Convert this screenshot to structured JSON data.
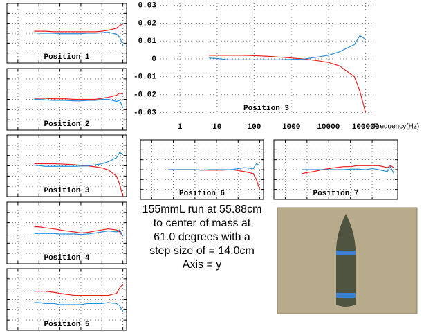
{
  "chart_data": [
    {
      "type": "line",
      "title": "Position 1",
      "xlog": true,
      "grid": true,
      "tick_labels": false,
      "x": [
        6,
        10,
        20,
        50,
        100,
        200,
        500,
        1000,
        2000,
        5000,
        10000,
        20000,
        50000,
        70000,
        100000
      ],
      "xlim": [
        0.3,
        150000
      ],
      "ylim": [
        -0.03,
        0.03
      ],
      "xticks": [
        1,
        10,
        100,
        1000,
        10000,
        100000
      ],
      "yticks": [
        -0.02,
        -0.01,
        0,
        0.01,
        0.02
      ],
      "series": [
        {
          "color": "#e8201e",
          "values": [
            0.002,
            0.002,
            0.002,
            0.0015,
            0.0015,
            0.0015,
            0.0015,
            0.0015,
            0.0015,
            0.0015,
            0.002,
            0.003,
            0.005,
            0.008,
            0.009
          ]
        },
        {
          "color": "#2a8fd8",
          "values": [
            0.0005,
            0,
            0,
            0,
            -0.0005,
            -0.0005,
            -0.0005,
            -0.0005,
            0,
            0,
            0.0005,
            0.001,
            -0.001,
            -0.004,
            -0.012
          ]
        }
      ]
    },
    {
      "type": "line",
      "title": "Position 2",
      "xlog": true,
      "grid": true,
      "tick_labels": false,
      "x": [
        6,
        10,
        20,
        50,
        100,
        200,
        500,
        1000,
        2000,
        5000,
        10000,
        20000,
        50000,
        70000,
        100000
      ],
      "xlim": [
        0.3,
        150000
      ],
      "ylim": [
        -0.03,
        0.03
      ],
      "xticks": [
        1,
        10,
        100,
        1000,
        10000,
        100000
      ],
      "yticks": [
        -0.02,
        -0.01,
        0,
        0.01,
        0.02
      ],
      "series": [
        {
          "color": "#e8201e",
          "values": [
            0.001,
            0.001,
            0.001,
            0.0005,
            0.0005,
            0.0005,
            0,
            0,
            0,
            0,
            0.001,
            0.002,
            0.004,
            0.006,
            0.005
          ]
        },
        {
          "color": "#2a8fd8",
          "values": [
            0,
            0,
            -0.0005,
            -0.001,
            -0.001,
            -0.001,
            -0.0015,
            -0.0015,
            -0.001,
            -0.001,
            0,
            0,
            -0.002,
            -0.001,
            -0.008
          ]
        }
      ]
    },
    {
      "type": "line",
      "title": "Position 3",
      "xlog": true,
      "grid": true,
      "tick_labels": false,
      "x": [
        6,
        10,
        20,
        50,
        100,
        200,
        500,
        1000,
        2000,
        5000,
        10000,
        20000,
        50000,
        70000,
        100000
      ],
      "xlim": [
        0.3,
        150000
      ],
      "ylim": [
        -0.03,
        0.03
      ],
      "xticks": [
        1,
        10,
        100,
        1000,
        10000,
        100000
      ],
      "yticks": [
        -0.02,
        -0.01,
        0,
        0.01,
        0.02
      ],
      "series": [
        {
          "color": "#e8201e",
          "values": [
            0.002,
            0.002,
            0.002,
            0.002,
            0.0018,
            0.0015,
            0.001,
            0.0005,
            0,
            -0.001,
            -0.002,
            -0.004,
            -0.01,
            -0.018,
            -0.03
          ]
        },
        {
          "color": "#2a8fd8",
          "values": [
            0.0005,
            0.0002,
            -0.0005,
            -0.0005,
            -0.0005,
            -0.0005,
            -0.0005,
            -0.0003,
            -0.0002,
            0.001,
            0.002,
            0.004,
            0.008,
            0.013,
            0.011
          ]
        }
      ]
    },
    {
      "type": "line",
      "title": "Position 4",
      "xlog": true,
      "grid": true,
      "tick_labels": false,
      "x": [
        6,
        10,
        20,
        50,
        100,
        200,
        500,
        1000,
        2000,
        5000,
        10000,
        20000,
        50000,
        70000,
        100000
      ],
      "xlim": [
        0.3,
        150000
      ],
      "ylim": [
        -0.03,
        0.03
      ],
      "xticks": [
        1,
        10,
        100,
        1000,
        10000,
        100000
      ],
      "yticks": [
        -0.02,
        -0.01,
        0,
        0.01,
        0.02
      ],
      "series": [
        {
          "color": "#e8201e",
          "values": [
            0.006,
            0.006,
            0.005,
            0.004,
            0.003,
            0.002,
            0.001,
            0,
            0.0005,
            0.002,
            0.003,
            0.004,
            0.003,
            0.001,
            -0.003
          ]
        },
        {
          "color": "#2a8fd8",
          "values": [
            -0.0005,
            -0.0005,
            -0.0005,
            -0.0005,
            -0.001,
            -0.001,
            -0.001,
            -0.0015,
            -0.001,
            0,
            0.001,
            0.002,
            0.001,
            0.003,
            -0.003
          ]
        }
      ]
    },
    {
      "type": "line",
      "title": "Position 5",
      "xlog": true,
      "grid": true,
      "tick_labels": false,
      "x": [
        6,
        10,
        20,
        50,
        100,
        200,
        500,
        1000,
        2000,
        5000,
        10000,
        20000,
        50000,
        70000,
        100000
      ],
      "xlim": [
        0.3,
        150000
      ],
      "ylim": [
        -0.03,
        0.03
      ],
      "xticks": [
        1,
        10,
        100,
        1000,
        10000,
        100000
      ],
      "yticks": [
        -0.02,
        -0.01,
        0,
        0.01,
        0.02
      ],
      "series": [
        {
          "color": "#e8201e",
          "values": [
            0.008,
            0.008,
            0.008,
            0.007,
            0.006,
            0.005,
            0.004,
            0.004,
            0.004,
            0.004,
            0.004,
            0.004,
            0.006,
            0.011,
            0.015
          ]
        },
        {
          "color": "#2a8fd8",
          "values": [
            -0.003,
            -0.003,
            -0.004,
            -0.004,
            -0.005,
            -0.005,
            -0.005,
            -0.005,
            -0.004,
            -0.004,
            -0.004,
            -0.003,
            -0.004,
            -0.006,
            -0.012
          ]
        }
      ]
    },
    {
      "type": "line",
      "title": "Position 3",
      "xlabel": "Frequency(Hz)",
      "xlog": true,
      "grid": true,
      "tick_labels": true,
      "x": [
        6,
        10,
        20,
        50,
        100,
        200,
        500,
        1000,
        2000,
        5000,
        10000,
        20000,
        50000,
        70000,
        100000
      ],
      "xlim": [
        0.3,
        150000
      ],
      "ylim": [
        -0.031,
        0.031
      ],
      "xticks": [
        1,
        10,
        100,
        1000,
        10000,
        100000
      ],
      "yticks": [
        0.03,
        0.02,
        0.01,
        0,
        -0.01,
        -0.02,
        -0.03
      ],
      "series": [
        {
          "color": "#e8201e",
          "values": [
            0.002,
            0.002,
            0.002,
            0.002,
            0.0018,
            0.0015,
            0.001,
            0.0005,
            0,
            -0.001,
            -0.002,
            -0.004,
            -0.01,
            -0.018,
            -0.03
          ]
        },
        {
          "color": "#2a8fd8",
          "values": [
            0.0005,
            0.0002,
            -0.0005,
            -0.0005,
            -0.0005,
            -0.0005,
            -0.0005,
            -0.0003,
            -0.0002,
            0.001,
            0.002,
            0.004,
            0.008,
            0.013,
            0.011
          ]
        }
      ]
    },
    {
      "type": "line",
      "title": "Position 6",
      "xlog": true,
      "grid": true,
      "tick_labels": false,
      "x": [
        6,
        10,
        20,
        50,
        100,
        200,
        500,
        1000,
        2000,
        5000,
        10000,
        20000,
        50000,
        70000,
        100000
      ],
      "xlim": [
        0.3,
        150000
      ],
      "ylim": [
        -0.03,
        0.03
      ],
      "xticks": [
        1,
        10,
        100,
        1000,
        10000,
        100000
      ],
      "yticks": [
        -0.02,
        -0.01,
        0,
        0.01,
        0.02
      ],
      "series": [
        {
          "color": "#e8201e",
          "values": [
            0,
            0,
            0,
            0,
            0,
            -0.0005,
            -0.0005,
            -0.0005,
            -0.0005,
            0,
            -0.001,
            -0.002,
            -0.004,
            -0.01,
            -0.02
          ]
        },
        {
          "color": "#2a8fd8",
          "values": [
            0,
            0,
            0,
            0,
            0,
            -0.0005,
            0,
            0,
            0,
            0,
            0.001,
            0.002,
            0.001,
            0.006,
            0.004
          ]
        }
      ]
    },
    {
      "type": "line",
      "title": "Position 7",
      "xlog": true,
      "grid": true,
      "tick_labels": false,
      "x": [
        6,
        10,
        20,
        50,
        100,
        200,
        500,
        1000,
        2000,
        5000,
        10000,
        20000,
        50000,
        70000,
        100000
      ],
      "xlim": [
        0.3,
        150000
      ],
      "ylim": [
        -0.03,
        0.03
      ],
      "xticks": [
        1,
        10,
        100,
        1000,
        10000,
        100000
      ],
      "yticks": [
        -0.02,
        -0.01,
        0,
        0.01,
        0.02
      ],
      "series": [
        {
          "color": "#e8201e",
          "values": [
            -0.004,
            -0.003,
            -0.002,
            0,
            0.001,
            0.002,
            0.003,
            0.003,
            0.004,
            0.004,
            0.004,
            0.004,
            0.002,
            0.004,
            0.002
          ]
        },
        {
          "color": "#2a8fd8",
          "values": [
            0,
            0,
            0,
            0,
            0,
            0,
            0,
            0.0005,
            0.0005,
            0,
            0.001,
            0,
            -0.002,
            0.003,
            -0.004
          ]
        }
      ]
    }
  ],
  "caption": [
    "155mmL run at 55.88cm",
    "to center of mass at",
    "61.0 degrees with a",
    "step size of = 14.0cm",
    "Axis = y"
  ]
}
